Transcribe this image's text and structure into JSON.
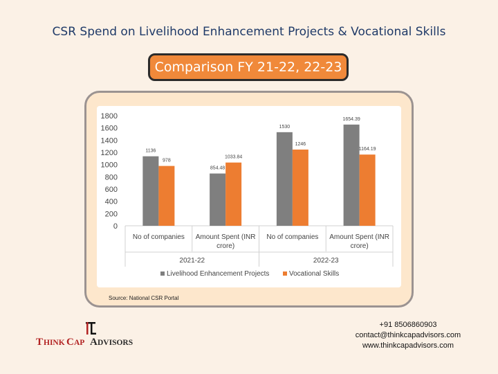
{
  "header": {
    "title": "CSR Spend on Livelihood Enhancement Projects & Vocational Skills",
    "subtitle": "Comparison FY 21-22, 22-23"
  },
  "chart_data": {
    "type": "bar",
    "groups": [
      "2021-22",
      "2022-23"
    ],
    "categories": [
      "No of companies",
      "Amount Spent (INR crore)",
      "No of companies",
      "Amount Spent (INR crore)"
    ],
    "category_lines": [
      [
        "No of companies"
      ],
      [
        "Amount Spent (INR",
        "crore)"
      ],
      [
        "No of companies"
      ],
      [
        "Amount Spent (INR",
        "crore)"
      ]
    ],
    "series": [
      {
        "name": "Livelihood Enhancement Projects",
        "color": "#7f7f7f",
        "values": [
          1136,
          854.48,
          1530,
          1654.39
        ],
        "labels": [
          "1136",
          "854.48",
          "1530",
          "1654.39"
        ]
      },
      {
        "name": "Vocational Skills",
        "color": "#ed7d31",
        "values": [
          978,
          1033.84,
          1246,
          1164.19
        ],
        "labels": [
          "978",
          "1033.84",
          "1246",
          "1164.19"
        ]
      }
    ],
    "y_ticks": [
      0,
      200,
      400,
      600,
      800,
      1000,
      1200,
      1400,
      1600,
      1800
    ],
    "ylim": [
      0,
      1800
    ],
    "legend_position": "bottom",
    "grid": false
  },
  "source": "Source: National CSR Portal",
  "brand": {
    "logo_mark": "TC",
    "name": "THINKCAP ADVISORS",
    "accent": "#b22222"
  },
  "contact": {
    "phone": "+91 8506860903",
    "email": "contact@thinkcapadvisors.com",
    "website": "www.thinkcapadvisors.com"
  }
}
